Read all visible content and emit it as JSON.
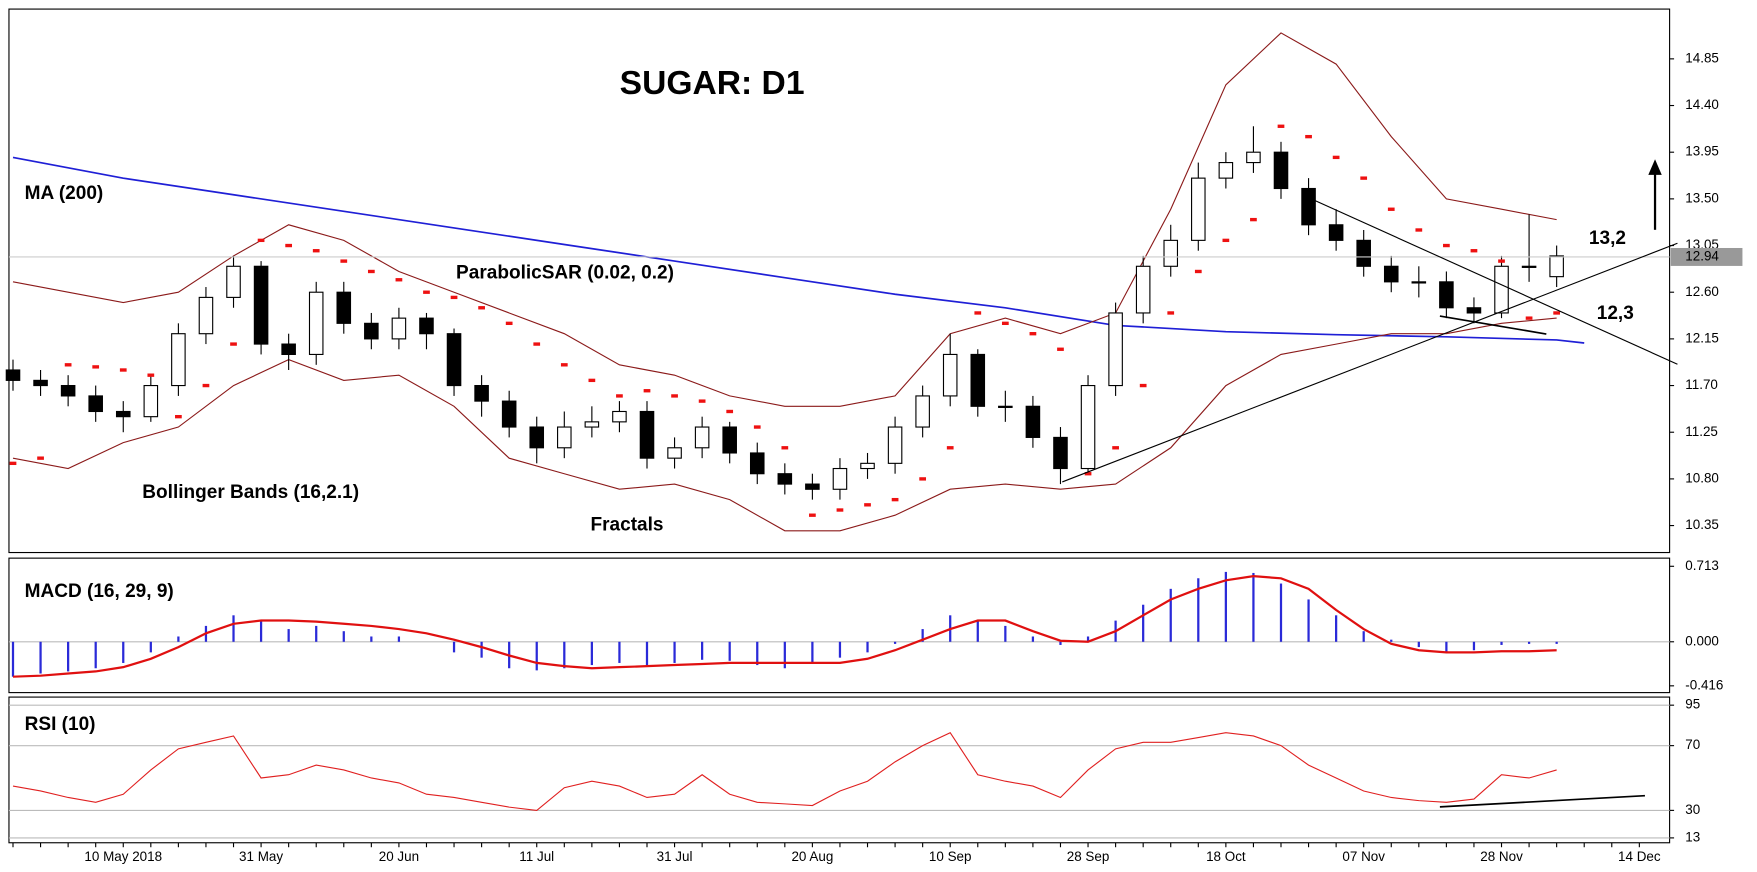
{
  "chart_data": [
    {
      "type": "candlestick",
      "title": "SUGAR: D1",
      "categories": [
        null,
        null,
        null,
        null,
        "10 May 2018",
        null,
        null,
        null,
        null,
        "31 May",
        null,
        null,
        null,
        null,
        "20 Jun",
        null,
        null,
        null,
        null,
        "11 Jul",
        null,
        null,
        null,
        null,
        "31 Jul",
        null,
        null,
        null,
        null,
        "20 Aug",
        null,
        null,
        null,
        null,
        "10 Sep",
        null,
        null,
        null,
        null,
        "28 Sep",
        null,
        null,
        null,
        null,
        "18 Oct",
        null,
        null,
        null,
        null,
        "07 Nov",
        null,
        null,
        null,
        null,
        "28 Nov",
        null,
        null,
        null,
        null,
        "14 Dec"
      ],
      "open": [
        11.85,
        11.75,
        11.7,
        11.6,
        11.45,
        11.4,
        11.7,
        12.2,
        12.55,
        12.85,
        12.1,
        12.0,
        12.6,
        12.3,
        12.15,
        12.35,
        12.2,
        11.7,
        11.55,
        11.3,
        11.1,
        11.3,
        11.35,
        11.45,
        11.0,
        11.1,
        11.3,
        11.05,
        10.85,
        10.75,
        10.7,
        10.9,
        10.95,
        11.3,
        11.6,
        12.0,
        11.5,
        11.5,
        11.2,
        10.9,
        11.7,
        12.4,
        12.85,
        13.1,
        13.7,
        13.85,
        13.95,
        13.6,
        13.25,
        13.1,
        12.85,
        12.7,
        12.7,
        12.45,
        12.4,
        12.85,
        12.75,
        null,
        null,
        null
      ],
      "high": [
        11.95,
        11.85,
        11.8,
        11.7,
        11.55,
        11.8,
        12.3,
        12.65,
        12.95,
        12.9,
        12.2,
        12.7,
        12.7,
        12.4,
        12.45,
        12.4,
        12.25,
        11.8,
        11.65,
        11.4,
        11.45,
        11.5,
        11.55,
        11.55,
        11.2,
        11.4,
        11.35,
        11.15,
        10.95,
        10.85,
        11.0,
        11.05,
        11.4,
        11.7,
        12.2,
        12.05,
        11.65,
        11.6,
        11.3,
        11.8,
        12.5,
        12.95,
        13.25,
        13.85,
        13.95,
        14.2,
        14.05,
        13.7,
        13.4,
        13.2,
        12.95,
        12.85,
        12.8,
        12.55,
        12.95,
        13.35,
        13.05,
        null,
        null,
        null
      ],
      "low": [
        11.65,
        11.6,
        11.5,
        11.35,
        11.25,
        11.35,
        11.6,
        12.1,
        12.45,
        12.0,
        11.85,
        11.9,
        12.2,
        12.05,
        12.05,
        12.05,
        11.6,
        11.4,
        11.2,
        10.95,
        11.0,
        11.2,
        11.25,
        10.9,
        10.9,
        11.0,
        10.95,
        10.75,
        10.65,
        10.6,
        10.6,
        10.8,
        10.85,
        11.2,
        11.5,
        11.4,
        11.35,
        11.1,
        10.75,
        10.85,
        11.6,
        12.3,
        12.75,
        13.0,
        13.6,
        13.75,
        13.5,
        13.15,
        13.0,
        12.75,
        12.6,
        12.55,
        12.35,
        12.3,
        12.35,
        12.7,
        12.65,
        null,
        null,
        null
      ],
      "close": [
        11.75,
        11.7,
        11.6,
        11.45,
        11.4,
        11.7,
        12.2,
        12.55,
        12.85,
        12.1,
        12.0,
        12.6,
        12.3,
        12.15,
        12.35,
        12.2,
        11.7,
        11.55,
        11.3,
        11.1,
        11.3,
        11.35,
        11.45,
        11.0,
        11.1,
        11.3,
        11.05,
        10.85,
        10.75,
        10.7,
        10.9,
        10.95,
        11.3,
        11.6,
        12.0,
        11.5,
        11.5,
        11.2,
        10.9,
        11.7,
        12.4,
        12.85,
        13.1,
        13.7,
        13.85,
        13.95,
        13.6,
        13.25,
        13.1,
        12.85,
        12.7,
        12.7,
        12.45,
        12.4,
        12.85,
        12.85,
        12.95,
        null,
        null,
        null
      ],
      "up_color": "#ffffff",
      "down_color": "#000000",
      "series": [
        {
          "name": "MA (200)",
          "color": "#1f1fd6",
          "x": [
            0,
            4,
            8,
            12,
            16,
            20,
            24,
            28,
            32,
            36,
            40,
            44,
            48,
            52,
            56,
            57
          ],
          "values": [
            13.9,
            13.7,
            13.54,
            13.38,
            13.22,
            13.06,
            12.9,
            12.74,
            12.58,
            12.45,
            12.28,
            12.22,
            12.19,
            12.17,
            12.14,
            12.11
          ]
        },
        {
          "name": "Bollinger Bands (16,2.1)",
          "color": "#8b1a1a",
          "x": [
            0,
            2,
            4,
            6,
            8,
            10,
            12,
            14,
            16,
            18,
            20,
            22,
            24,
            26,
            28,
            30,
            32,
            34,
            36,
            38,
            40,
            42,
            44,
            46,
            48,
            50,
            52,
            54,
            56
          ],
          "upper": [
            12.7,
            12.6,
            12.5,
            12.6,
            12.95,
            13.25,
            13.1,
            12.8,
            12.6,
            12.4,
            12.2,
            11.9,
            11.8,
            11.6,
            11.5,
            11.5,
            11.6,
            12.2,
            12.35,
            12.2,
            12.4,
            13.4,
            14.6,
            15.1,
            14.8,
            14.1,
            13.5,
            13.4,
            13.3
          ],
          "lower": [
            11.0,
            10.9,
            11.15,
            11.3,
            11.7,
            11.95,
            11.75,
            11.8,
            11.5,
            11.0,
            10.85,
            10.7,
            10.75,
            10.6,
            10.3,
            10.3,
            10.45,
            10.7,
            10.75,
            10.7,
            10.75,
            11.1,
            11.7,
            12.0,
            12.1,
            12.2,
            12.2,
            12.3,
            12.35
          ]
        },
        {
          "name": "ParabolicSAR (0.02, 0.2)",
          "color": "#ee1111",
          "values": [
            10.95,
            11.0,
            11.9,
            11.88,
            11.85,
            11.8,
            11.4,
            11.7,
            12.1,
            13.1,
            13.05,
            13.0,
            12.9,
            12.8,
            12.72,
            12.6,
            12.55,
            12.45,
            12.3,
            12.1,
            11.9,
            11.75,
            11.6,
            11.65,
            11.6,
            11.55,
            11.45,
            11.3,
            11.1,
            10.45,
            10.5,
            10.55,
            10.6,
            10.8,
            11.1,
            12.4,
            12.3,
            12.2,
            12.05,
            10.85,
            11.1,
            11.7,
            12.4,
            12.8,
            13.1,
            13.3,
            14.2,
            14.1,
            13.9,
            13.7,
            13.4,
            13.2,
            13.05,
            13.0,
            12.9,
            12.35,
            12.4,
            null,
            null,
            null
          ]
        }
      ],
      "annotations": [
        "Fractals",
        "13,2",
        "12,3"
      ],
      "last_price": 12.94,
      "ylim": [
        10.09,
        15.33
      ],
      "yticks": [
        10.35,
        {
          "value": 10.8,
          "label": "10.80"
        },
        11.25,
        {
          "value": 11.7,
          "label": "11.70"
        },
        12.15,
        {
          "value": 12.6,
          "label": "12.60"
        },
        13.05,
        {
          "value": 13.5,
          "label": "13.50"
        },
        13.95,
        {
          "value": 14.4,
          "label": "14.40"
        },
        14.85
      ]
    },
    {
      "type": "macd",
      "title": "MACD (16, 29, 9)",
      "histogram": {
        "color": "#2a2ad8",
        "values": [
          -0.33,
          -0.3,
          -0.28,
          -0.25,
          -0.2,
          -0.1,
          0.05,
          0.15,
          0.25,
          0.2,
          0.12,
          0.15,
          0.1,
          0.05,
          0.05,
          0.0,
          -0.1,
          -0.15,
          -0.25,
          -0.27,
          -0.25,
          -0.22,
          -0.2,
          -0.22,
          -0.2,
          -0.17,
          -0.18,
          -0.22,
          -0.25,
          -0.2,
          -0.15,
          -0.1,
          -0.02,
          0.12,
          0.25,
          0.2,
          0.15,
          0.05,
          -0.03,
          0.05,
          0.2,
          0.35,
          0.5,
          0.6,
          0.66,
          0.65,
          0.55,
          0.4,
          0.25,
          0.1,
          0.02,
          -0.05,
          -0.1,
          -0.08,
          -0.03,
          -0.02,
          -0.02,
          null,
          null,
          null
        ]
      },
      "signal": {
        "color": "#e01010",
        "values": [
          -0.33,
          -0.32,
          -0.3,
          -0.28,
          -0.24,
          -0.16,
          -0.05,
          0.08,
          0.17,
          0.2,
          0.2,
          0.19,
          0.17,
          0.15,
          0.12,
          0.08,
          0.02,
          -0.05,
          -0.13,
          -0.2,
          -0.23,
          -0.25,
          -0.24,
          -0.23,
          -0.22,
          -0.21,
          -0.2,
          -0.2,
          -0.2,
          -0.2,
          -0.2,
          -0.16,
          -0.08,
          0.02,
          0.12,
          0.2,
          0.2,
          0.1,
          0.01,
          0.0,
          0.1,
          0.25,
          0.4,
          0.5,
          0.58,
          0.62,
          0.6,
          0.5,
          0.3,
          0.12,
          -0.02,
          -0.08,
          -0.1,
          -0.1,
          -0.09,
          -0.09,
          -0.08,
          null,
          null,
          null
        ]
      },
      "ylim": [
        -0.48,
        0.79
      ],
      "yticks": [
        0.713,
        {
          "value": 0,
          "label": "0.000"
        },
        -0.416
      ]
    },
    {
      "type": "line",
      "title": "RSI (10)",
      "color": "#e02020",
      "values": [
        45,
        42,
        38,
        35,
        40,
        55,
        68,
        72,
        76,
        50,
        52,
        58,
        55,
        50,
        47,
        40,
        38,
        35,
        32,
        30,
        44,
        48,
        45,
        38,
        40,
        52,
        40,
        35,
        34,
        33,
        42,
        48,
        60,
        70,
        78,
        52,
        48,
        45,
        38,
        55,
        68,
        72,
        72,
        75,
        78,
        76,
        70,
        58,
        50,
        42,
        38,
        36,
        35,
        37,
        52,
        50,
        55,
        null,
        null,
        null
      ],
      "ylim": [
        10,
        100
      ],
      "yticks": [
        95,
        70,
        30,
        13
      ],
      "grid": true
    }
  ]
}
